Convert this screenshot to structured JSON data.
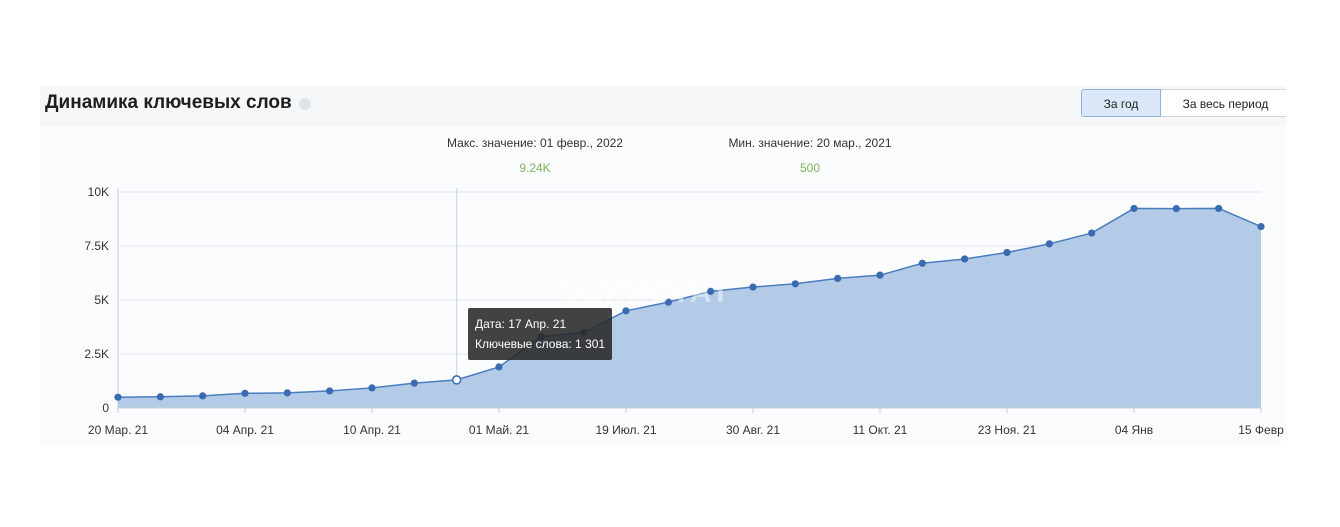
{
  "widget": {
    "title": "Динамика ключевых слов",
    "buttons": {
      "year": "За год",
      "all_period": "За весь период"
    },
    "max_label": "Макс. значение: 01 февр., 2022",
    "max_value": "9.24K",
    "min_label": "Мин. значение: 20 мар., 2021",
    "min_value": "500",
    "watermark": "SERPSTAT",
    "tooltip": {
      "date": "Дата: 17 Апр. 21",
      "keywords": "Ключевые слова: 1 301"
    }
  },
  "colors": {
    "area": "#b3cbe6",
    "line": "#4a7dc0",
    "point": "#3a6bb0",
    "value": "#7cb35a"
  },
  "chart_data": {
    "type": "area",
    "ylim": [
      0,
      10000
    ],
    "y_ticks": [
      0,
      2500,
      5000,
      7500,
      10000
    ],
    "y_tick_labels": [
      "0",
      "2.5K",
      "5K",
      "7.5K",
      "10K"
    ],
    "x_tick_labels": [
      "20 Мар. 21",
      "04 Апр. 21",
      "10 Апр. 21",
      "01 Май. 21",
      "19 Июл. 21",
      "30 Авг. 21",
      "11 Окт. 21",
      "23 Ноя. 21",
      "04 Янв",
      "15 Февр"
    ],
    "x_tick_index": [
      0,
      3,
      6,
      9,
      12,
      15,
      18,
      21,
      24,
      27
    ],
    "series": [
      {
        "values": [
          500,
          520,
          560,
          680,
          700,
          790,
          930,
          1150,
          1301,
          1900,
          3300,
          3500,
          4500,
          4900,
          5400,
          5600,
          5750,
          6000,
          6150,
          6700,
          6900,
          7200,
          7600,
          8100,
          9240,
          9230,
          9240,
          8400
        ]
      }
    ],
    "highlight_index": 8,
    "grid": true
  }
}
